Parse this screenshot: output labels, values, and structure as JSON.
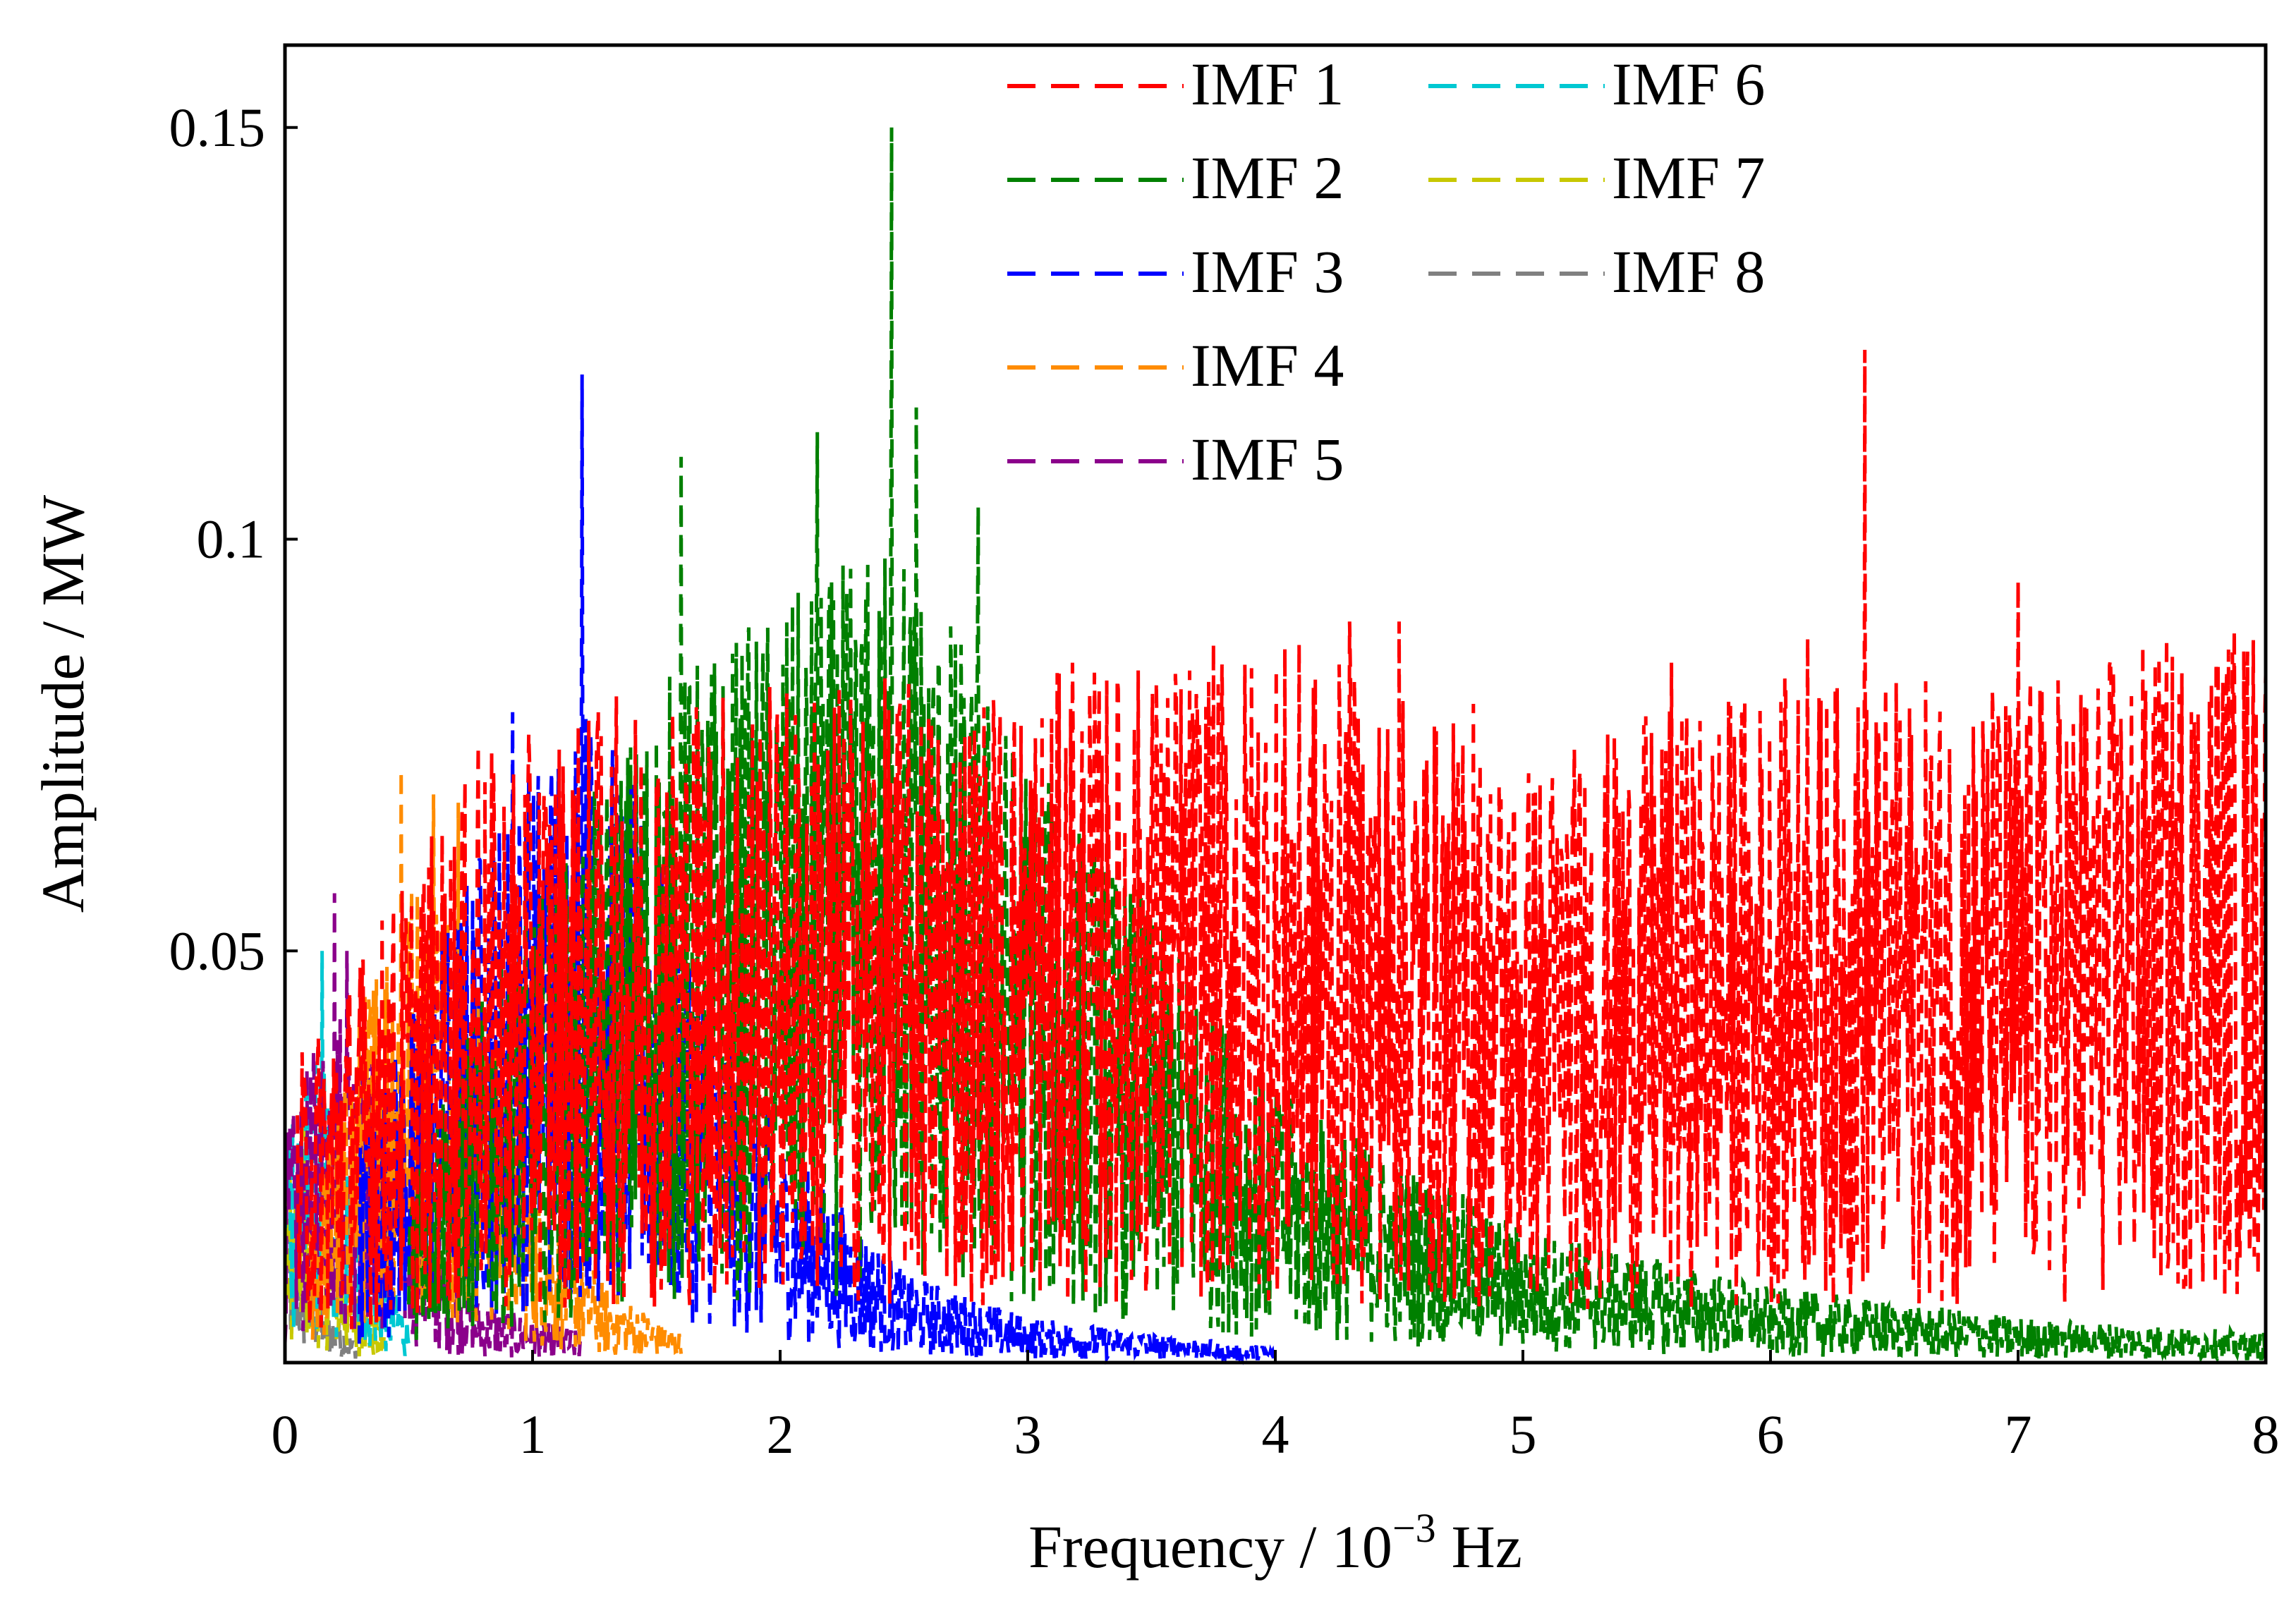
{
  "chart_data": {
    "type": "line",
    "title": "",
    "xlabel": "Frequency / 10",
    "xlabel_exponent": "−3",
    "xlabel_unit": "Hz",
    "ylabel": "Amplitude / MW",
    "xlim": [
      0,
      8
    ],
    "ylim": [
      0,
      0.16
    ],
    "x_ticks": [
      0,
      1,
      2,
      3,
      4,
      5,
      6,
      7,
      8
    ],
    "x_tick_labels": [
      "0",
      "1",
      "2",
      "3",
      "4",
      "5",
      "6",
      "7",
      "8"
    ],
    "y_ticks": [
      0.05,
      0.1,
      0.15
    ],
    "y_tick_labels": [
      "0.05",
      "0.1",
      "0.15"
    ],
    "grid": false,
    "legend_position": "top-right",
    "line_style": "dashed",
    "series": [
      {
        "name": "IMF 1",
        "color": "#ff0000",
        "x_range": [
          0.05,
          8.0
        ],
        "envelope": [
          [
            0.05,
            0.02
          ],
          [
            0.4,
            0.03
          ],
          [
            0.8,
            0.04
          ],
          [
            1.5,
            0.045
          ],
          [
            2.0,
            0.045
          ],
          [
            3.0,
            0.045
          ],
          [
            4.0,
            0.048
          ],
          [
            5.0,
            0.04
          ],
          [
            6.0,
            0.045
          ],
          [
            7.0,
            0.045
          ],
          [
            8.0,
            0.05
          ]
        ],
        "peaks": [
          [
            0.78,
            0.075
          ],
          [
            3.18,
            0.085
          ],
          [
            4.3,
            0.09
          ],
          [
            4.5,
            0.09
          ],
          [
            4.8,
            0.08
          ],
          [
            5.6,
            0.085
          ],
          [
            6.15,
            0.088
          ],
          [
            6.38,
            0.123
          ],
          [
            7.0,
            0.095
          ],
          [
            7.7,
            0.079
          ]
        ]
      },
      {
        "name": "IMF 2",
        "color": "#008000",
        "x_range": [
          0.5,
          8.0
        ],
        "envelope": [
          [
            0.5,
            0.015
          ],
          [
            1.0,
            0.03
          ],
          [
            1.5,
            0.045
          ],
          [
            2.0,
            0.05
          ],
          [
            2.5,
            0.055
          ],
          [
            3.0,
            0.04
          ],
          [
            3.5,
            0.03
          ],
          [
            4.0,
            0.018
          ],
          [
            5.0,
            0.009
          ],
          [
            6.0,
            0.005
          ],
          [
            7.0,
            0.003
          ],
          [
            8.0,
            0.002
          ]
        ],
        "peaks": [
          [
            1.6,
            0.11
          ],
          [
            2.15,
            0.113
          ],
          [
            2.45,
            0.15
          ],
          [
            2.55,
            0.116
          ],
          [
            2.8,
            0.104
          ]
        ]
      },
      {
        "name": "IMF 3",
        "color": "#0000ff",
        "x_range": [
          0.3,
          4.0
        ],
        "envelope": [
          [
            0.3,
            0.015
          ],
          [
            0.8,
            0.035
          ],
          [
            1.2,
            0.045
          ],
          [
            1.5,
            0.035
          ],
          [
            2.0,
            0.015
          ],
          [
            2.5,
            0.006
          ],
          [
            3.0,
            0.003
          ],
          [
            3.5,
            0.002
          ],
          [
            4.0,
            0.001
          ]
        ],
        "peaks": [
          [
            0.92,
            0.079
          ],
          [
            1.2,
            0.12
          ]
        ]
      },
      {
        "name": "IMF 4",
        "color": "#ff8c00",
        "x_range": [
          0.1,
          1.6
        ],
        "envelope": [
          [
            0.1,
            0.01
          ],
          [
            0.4,
            0.03
          ],
          [
            0.6,
            0.035
          ],
          [
            0.8,
            0.025
          ],
          [
            1.0,
            0.012
          ],
          [
            1.3,
            0.005
          ],
          [
            1.6,
            0.002
          ]
        ],
        "peaks": [
          [
            0.47,
            0.072
          ],
          [
            0.6,
            0.069
          ],
          [
            0.7,
            0.068
          ]
        ]
      },
      {
        "name": "IMF 5",
        "color": "#8b008b",
        "x_range": [
          0.0,
          1.2
        ],
        "envelope": [
          [
            0.0,
            0.015
          ],
          [
            0.2,
            0.025
          ],
          [
            0.4,
            0.02
          ],
          [
            0.6,
            0.008
          ],
          [
            0.8,
            0.004
          ],
          [
            1.2,
            0.002
          ]
        ],
        "peaks": [
          [
            0.2,
            0.057
          ],
          [
            0.25,
            0.05
          ]
        ]
      },
      {
        "name": "IMF 6",
        "color": "#00c8d2",
        "x_range": [
          0.0,
          0.5
        ],
        "envelope": [
          [
            0.0,
            0.02
          ],
          [
            0.15,
            0.02
          ],
          [
            0.3,
            0.01
          ],
          [
            0.5,
            0.003
          ]
        ],
        "peaks": [
          [
            0.15,
            0.05
          ]
        ]
      },
      {
        "name": "IMF 7",
        "color": "#c8c800",
        "x_range": [
          0.0,
          0.4
        ],
        "envelope": [
          [
            0.0,
            0.015
          ],
          [
            0.1,
            0.012
          ],
          [
            0.25,
            0.006
          ],
          [
            0.4,
            0.002
          ]
        ],
        "peaks": [
          [
            0.08,
            0.03
          ]
        ]
      },
      {
        "name": "IMF 8",
        "color": "#808080",
        "x_range": [
          0.0,
          0.3
        ],
        "envelope": [
          [
            0.0,
            0.01
          ],
          [
            0.1,
            0.006
          ],
          [
            0.3,
            0.001
          ]
        ],
        "peaks": [
          [
            0.03,
            0.018
          ]
        ]
      }
    ]
  }
}
